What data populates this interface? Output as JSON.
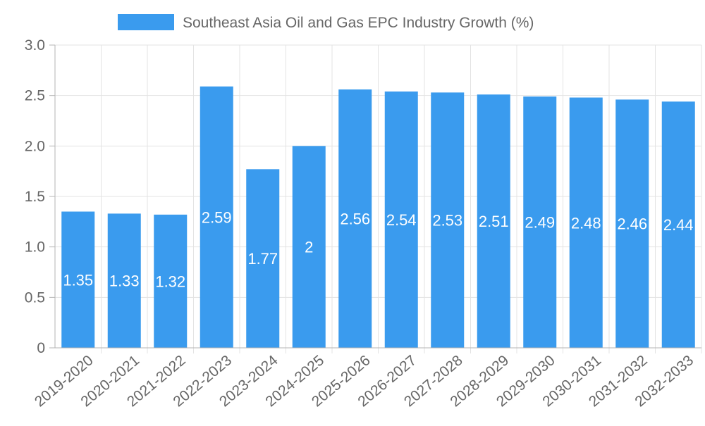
{
  "chart_data": {
    "type": "bar",
    "title": "",
    "xlabel": "",
    "ylabel": "",
    "legend_position": "top-center",
    "categories": [
      "2019-2020",
      "2020-2021",
      "2021-2022",
      "2022-2023",
      "2023-2024",
      "2024-2025",
      "2025-2026",
      "2026-2027",
      "2027-2028",
      "2028-2029",
      "2029-2030",
      "2030-2031",
      "2031-2032",
      "2032-2033"
    ],
    "series": [
      {
        "name": "Southeast Asia Oil and Gas EPC Industry Growth (%)",
        "values": [
          1.35,
          1.33,
          1.32,
          2.59,
          1.77,
          2,
          2.56,
          2.54,
          2.53,
          2.51,
          2.49,
          2.48,
          2.46,
          2.44
        ],
        "labels": [
          "1.35",
          "1.33",
          "1.32",
          "2.59",
          "1.77",
          "2",
          "2.56",
          "2.54",
          "2.53",
          "2.51",
          "2.49",
          "2.48",
          "2.46",
          "2.44"
        ],
        "color": "#3a9bee"
      }
    ],
    "ylim": [
      0,
      3.0
    ],
    "yticks": [
      0,
      0.5,
      1.0,
      1.5,
      2.0,
      2.5,
      3.0
    ],
    "ytick_labels": [
      "0",
      "0.5",
      "1.0",
      "1.5",
      "2.0",
      "2.5",
      "3.0"
    ],
    "grid": true
  },
  "colors": {
    "bar": "#3a9bee",
    "grid": "#e3e3e3",
    "axis": "#b5b5b5",
    "text": "#666666",
    "data_label": "#ffffff"
  }
}
